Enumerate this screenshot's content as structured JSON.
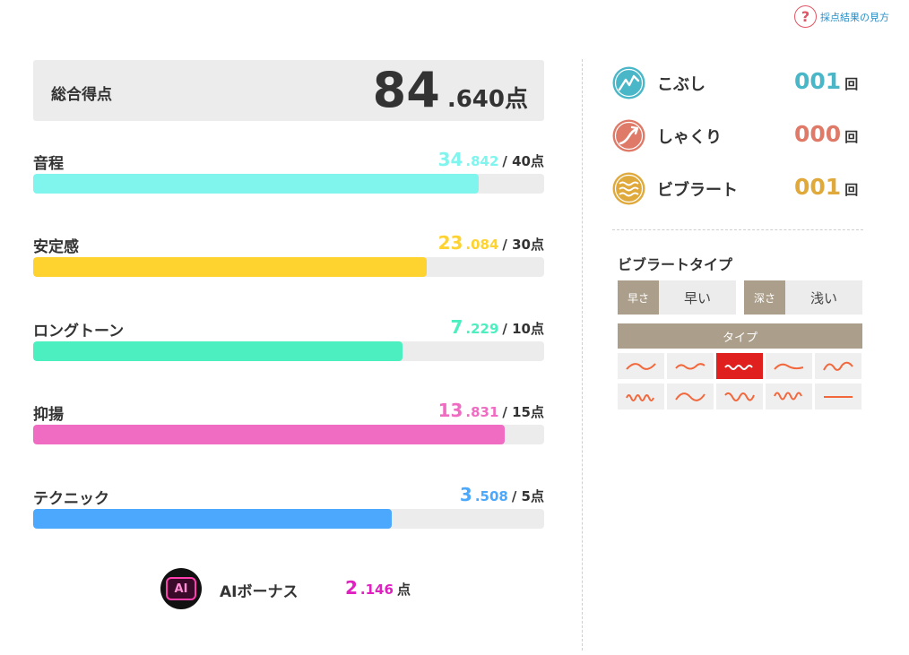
{
  "help": {
    "label": "採点結果の見方",
    "icon": "question-icon"
  },
  "total": {
    "label": "総合得点",
    "int": "84",
    "dec": ".640",
    "unit": "点"
  },
  "metrics": [
    {
      "name": "pitch",
      "label": "音程",
      "int": "34",
      "dec": ".842",
      "max": "/ 40点",
      "fraction": 0.8711,
      "color": "#7ff5ee"
    },
    {
      "name": "stability",
      "label": "安定感",
      "int": "23",
      "dec": ".084",
      "max": "/ 30点",
      "fraction": 0.7695,
      "color": "#fed330"
    },
    {
      "name": "long-tone",
      "label": "ロングトーン",
      "int": "7",
      "dec": ".229",
      "max": "/ 10点",
      "fraction": 0.7229,
      "color": "#4cefc0"
    },
    {
      "name": "expression",
      "label": "抑揚",
      "int": "13",
      "dec": ".831",
      "max": "/ 15点",
      "fraction": 0.9221,
      "color": "#f06bc2"
    },
    {
      "name": "technique",
      "label": "テクニック",
      "int": "3",
      "dec": ".508",
      "max": "/ 5点",
      "fraction": 0.7016,
      "color": "#4ca8fc"
    }
  ],
  "bonus": {
    "label": "AIボーナス",
    "badge": "AI",
    "int": "2",
    "dec": ".146",
    "unit": "点"
  },
  "techniques": [
    {
      "name": "kobushi",
      "label": "こぶし",
      "count": "001",
      "unit": "回",
      "color": "#49b7c8",
      "icon": "kobushi-icon"
    },
    {
      "name": "shakuri",
      "label": "しゃくり",
      "count": "000",
      "unit": "回",
      "color": "#e07a68",
      "icon": "shakuri-icon"
    },
    {
      "name": "vibrato",
      "label": "ビブラート",
      "count": "001",
      "unit": "回",
      "color": "#dfa93c",
      "icon": "vibrato-icon"
    }
  ],
  "vibrato_type": {
    "title": "ビブラートタイプ",
    "speed": {
      "tag": "早さ",
      "value": "早い"
    },
    "depth": {
      "tag": "深さ",
      "value": "浅い"
    },
    "type_header": "タイプ",
    "selected_index": 2
  },
  "colors": {
    "accent_text": "#333333",
    "tag_bg": "#ab9f8b",
    "track": "#ececec",
    "bonus_text": "#e020c0"
  }
}
